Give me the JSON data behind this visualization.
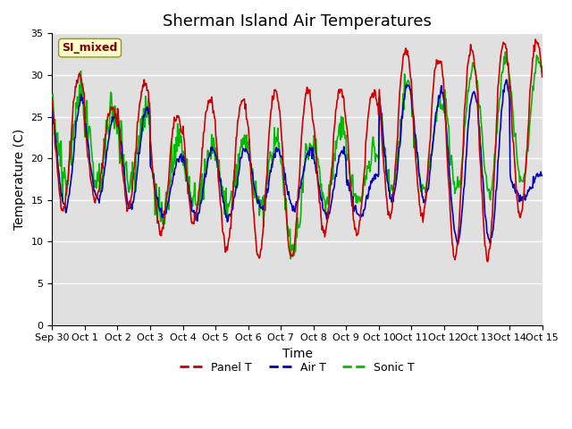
{
  "title": "Sherman Island Air Temperatures",
  "xlabel": "Time",
  "ylabel": "Temperature (C)",
  "ylim": [
    0,
    35
  ],
  "yticks": [
    0,
    5,
    10,
    15,
    20,
    25,
    30,
    35
  ],
  "xtick_labels": [
    "Sep 30",
    "Oct 1",
    "Oct 2",
    "Oct 3",
    "Oct 4",
    "Oct 5",
    "Oct 6",
    "Oct 7",
    "Oct 8",
    "Oct 9",
    "Oct 10",
    "Oct 11",
    "Oct 12",
    "Oct 13",
    "Oct 14",
    "Oct 15"
  ],
  "legend_label": "SI_mixed",
  "legend_label_color": "#800000",
  "legend_label_bg": "#ffffcc",
  "legend_label_edge": "#999900",
  "line_colors": {
    "panel": "#cc0000",
    "air": "#0000bb",
    "sonic": "#00bb00"
  },
  "line_labels": {
    "panel": "Panel T",
    "air": "Air T",
    "sonic": "Sonic T"
  },
  "line_width": 1.2,
  "bg_color": "#e0e0e0",
  "fig_bg": "#ffffff",
  "grid_color": "#ffffff",
  "title_fontsize": 13,
  "axis_fontsize": 10,
  "tick_fontsize": 8
}
